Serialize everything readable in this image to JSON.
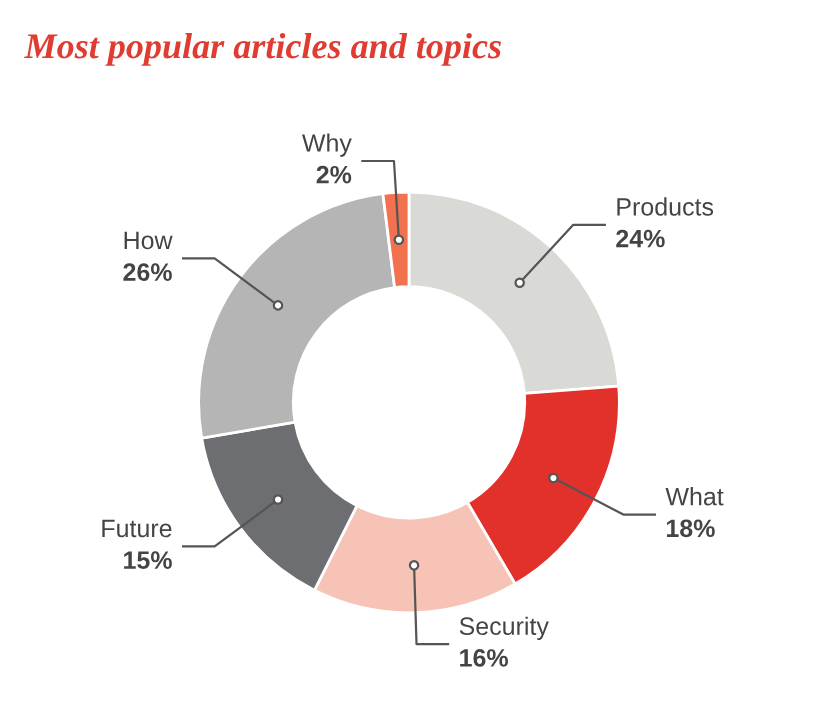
{
  "chart_data": {
    "type": "donut",
    "title": "Most popular articles and topics",
    "categories": [
      "Products",
      "What",
      "Security",
      "Future",
      "How",
      "Why"
    ],
    "values": [
      24,
      18,
      16,
      15,
      26,
      2
    ],
    "value_labels": [
      "24%",
      "18%",
      "16%",
      "15%",
      "26%",
      "2%"
    ],
    "colors": [
      "#d9d9d6",
      "#e2312b",
      "#f6c3b6",
      "#6d6e71",
      "#b5b5b5",
      "#f2724f"
    ]
  }
}
